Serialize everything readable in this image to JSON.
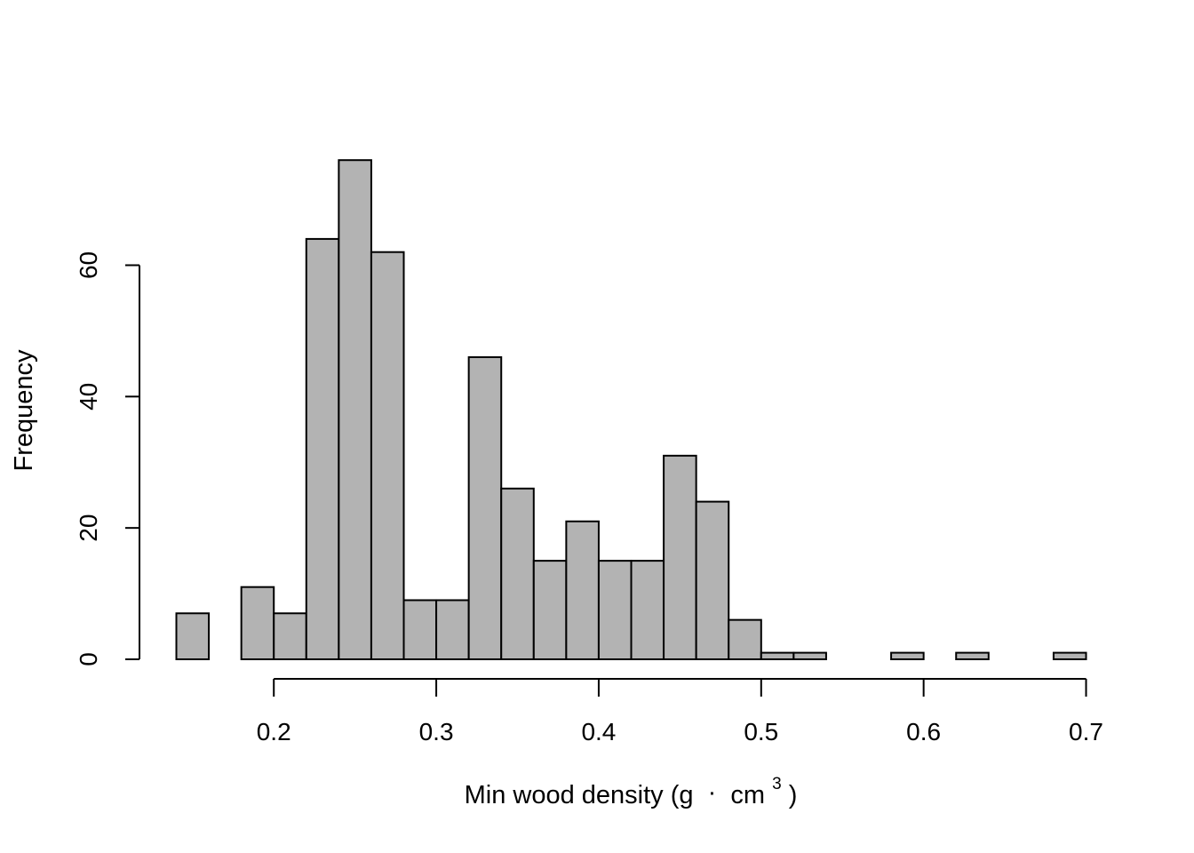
{
  "chart_data": {
    "type": "bar",
    "subtype": "histogram",
    "title": "",
    "xlabel": "Min wood density (g",
    "xlabel_dot": "·",
    "xlabel_unit": "cm",
    "xlabel_superscript": "3",
    "xlabel_close": ")",
    "ylabel": "Frequency",
    "bin_width": 0.02,
    "bin_starts": [
      0.14,
      0.16,
      0.18,
      0.2,
      0.22,
      0.24,
      0.26,
      0.28,
      0.3,
      0.32,
      0.34,
      0.36,
      0.38,
      0.4,
      0.42,
      0.44,
      0.46,
      0.48,
      0.5,
      0.52,
      0.54,
      0.56,
      0.58,
      0.6,
      0.62,
      0.64,
      0.66,
      0.68
    ],
    "values": [
      7,
      0,
      11,
      7,
      64,
      76,
      62,
      9,
      9,
      46,
      26,
      15,
      21,
      15,
      15,
      31,
      24,
      6,
      1,
      1,
      0,
      0,
      1,
      0,
      1,
      0,
      0,
      1
    ],
    "xlim": [
      0.14,
      0.7
    ],
    "ylim": [
      0,
      80
    ],
    "x_ticks": [
      0.2,
      0.3,
      0.4,
      0.5,
      0.6,
      0.7
    ],
    "x_tick_labels": [
      "0.2",
      "0.3",
      "0.4",
      "0.5",
      "0.6",
      "0.7"
    ],
    "y_ticks": [
      0,
      20,
      40,
      60
    ],
    "y_tick_labels": [
      "0",
      "20",
      "40",
      "60"
    ],
    "bar_color": "#b3b3b3",
    "bar_edge_color": "#000000",
    "grid": false,
    "legend": "none"
  }
}
